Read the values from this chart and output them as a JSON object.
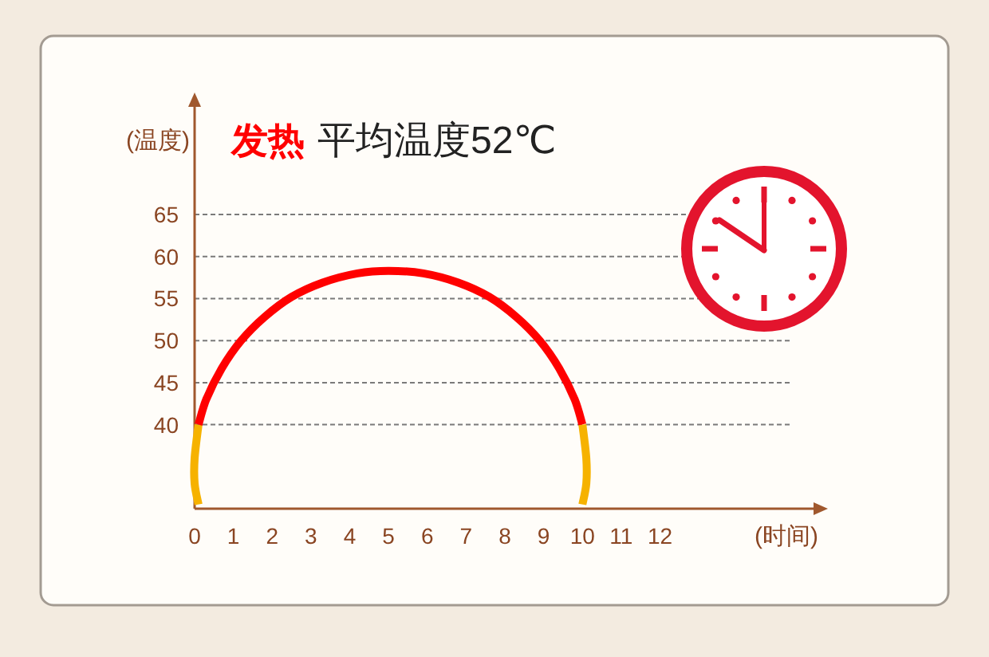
{
  "chart_data": {
    "type": "line",
    "title": "发热",
    "subtitle": "平均温度52℃",
    "xlabel": "(时间)",
    "ylabel": "(温度)",
    "xlim": [
      0,
      16
    ],
    "ylim": [
      30,
      78
    ],
    "xticks": [
      0,
      1,
      2,
      3,
      4,
      5,
      6,
      7,
      8,
      9,
      10,
      11,
      12
    ],
    "yticks": [
      40,
      45,
      50,
      55,
      60,
      65
    ],
    "grid": "y",
    "series": [
      {
        "color": "#f6b200",
        "x": [
          0.1,
          0,
          0,
          0.1
        ],
        "values": [
          30.5,
          33,
          36,
          40
        ]
      },
      {
        "color": "#ff0000",
        "x": [
          0.1,
          0.3,
          0.7,
          1.2,
          1.8,
          2.5,
          3.3,
          4.2,
          5,
          5.9,
          6.8,
          7.6,
          8.3,
          8.9,
          9.4,
          9.8,
          10
        ],
        "values": [
          40,
          43,
          46.7,
          50,
          52.8,
          55.2,
          56.9,
          58,
          58.3,
          58,
          56.9,
          55.2,
          52.8,
          50,
          46.7,
          43,
          40
        ]
      },
      {
        "color": "#f6b200",
        "x": [
          10,
          10.1,
          10.1,
          10
        ],
        "values": [
          40,
          36,
          33,
          30.5
        ]
      }
    ]
  }
}
